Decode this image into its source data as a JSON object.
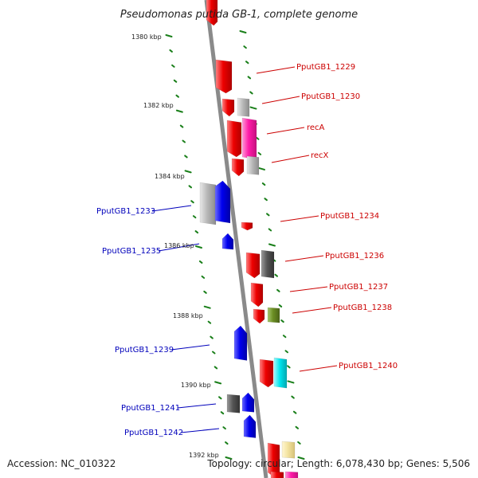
{
  "title": "Pseudomonas putida GB-1, complete genome",
  "footer": {
    "accession": "Accession: NC_010322",
    "topology": "Topology: circular; Length: 6,078,430 bp; Genes: 5,506"
  },
  "colors": {
    "red": "#ee0000",
    "blue": "#0000ee",
    "magenta": "#ff1aa8",
    "gray": "#b8b8b8",
    "darkgray": "#555555",
    "olive": "#6b8e23",
    "cyan": "#00e5ee",
    "cream": "#f3e3a0",
    "tick": "#1a7f1a",
    "label_right": "#cc0000",
    "label_left": "#0000bb",
    "backbone": "#8a8a8a"
  },
  "scale_labels": [
    "1380 kbp",
    "1382 kbp",
    "1384 kbp",
    "1386 kbp",
    "1388 kbp",
    "1390 kbp",
    "1392 kbp"
  ],
  "right_labels": [
    "PputGB1_1229",
    "PputGB1_1230",
    "recA",
    "recX",
    "PputGB1_1234",
    "PputGB1_1236",
    "PputGB1_1237",
    "PputGB1_1238",
    "PputGB1_1240"
  ],
  "left_labels": [
    "PputGB1_1233",
    "PputGB1_1235",
    "PputGB1_1239",
    "PputGB1_1241",
    "PputGB1_1242"
  ]
}
